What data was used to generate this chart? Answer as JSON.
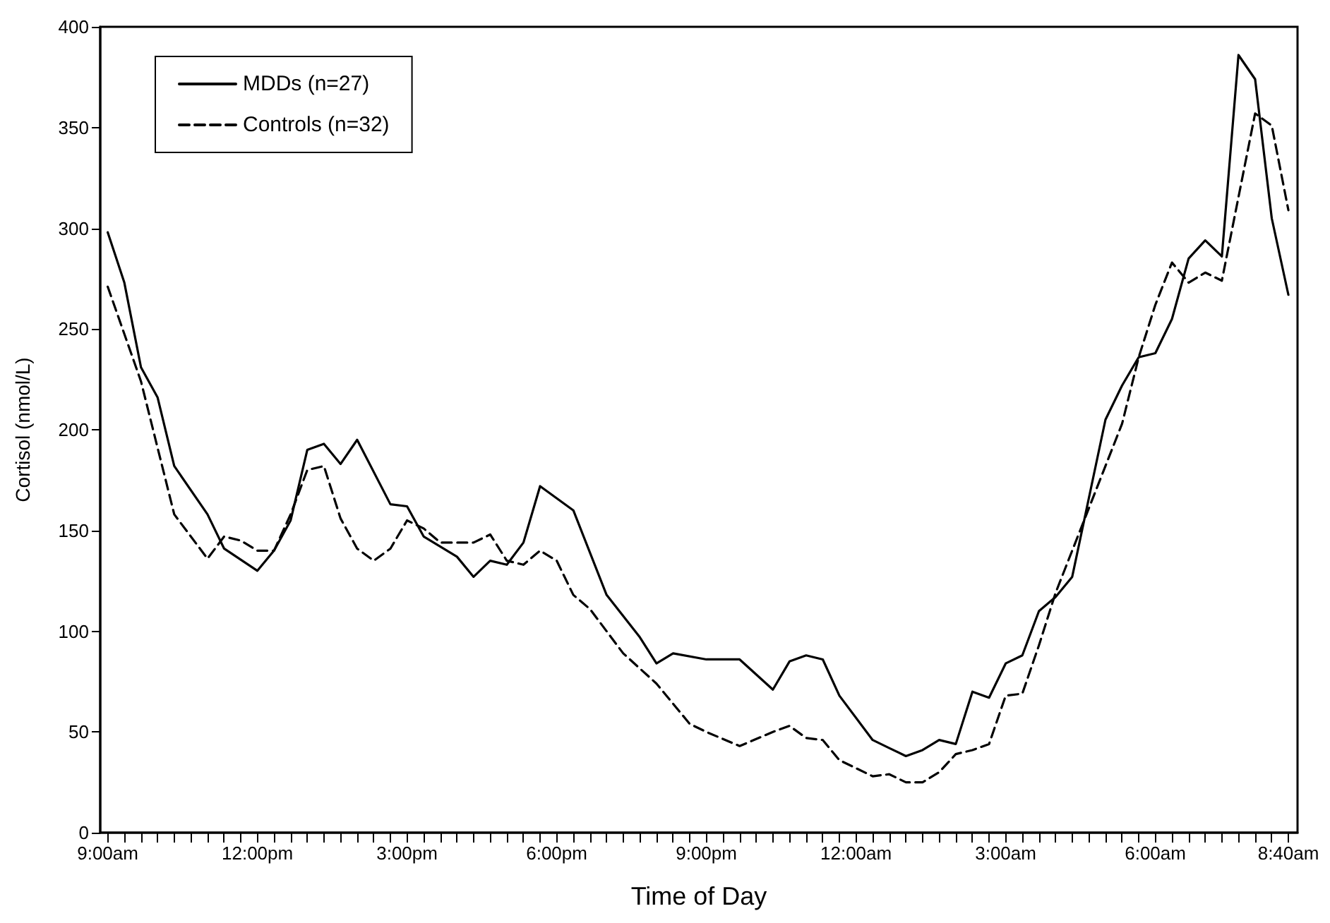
{
  "chart_data": {
    "type": "line",
    "xlabel": "Time of Day",
    "ylabel": "Cortisol (nmol/L)",
    "grid": false,
    "legend": "top left",
    "marker": "none",
    "xlim": [
      "--01-01T08:51",
      "--01-02T08:51"
    ],
    "ylim": [
      0,
      400
    ],
    "yticks": [
      0,
      50,
      100,
      150,
      200,
      250,
      300,
      350,
      400
    ],
    "xticks": [
      {
        "value": "--01-01T09:00",
        "label": "9:00am"
      },
      {
        "value": "--01-01T09:20",
        "label": null
      },
      {
        "value": "--01-01T09:40",
        "label": null
      },
      {
        "value": "--01-01T10:00",
        "label": null
      },
      {
        "value": "--01-01T10:20",
        "label": null
      },
      {
        "value": "--01-01T10:40",
        "label": null
      },
      {
        "value": "--01-01T11:00",
        "label": null
      },
      {
        "value": "--01-01T11:20",
        "label": null
      },
      {
        "value": "--01-01T11:40",
        "label": null
      },
      {
        "value": "--01-01T12:00",
        "label": "12:00pm"
      },
      {
        "value": "--01-01T12:20",
        "label": null
      },
      {
        "value": "--01-01T12:40",
        "label": null
      },
      {
        "value": "--01-01T13:00",
        "label": null
      },
      {
        "value": "--01-01T13:20",
        "label": null
      },
      {
        "value": "--01-01T13:40",
        "label": null
      },
      {
        "value": "--01-01T14:00",
        "label": null
      },
      {
        "value": "--01-01T14:20",
        "label": null
      },
      {
        "value": "--01-01T14:40",
        "label": null
      },
      {
        "value": "--01-01T15:00",
        "label": "3:00pm"
      },
      {
        "value": "--01-01T15:20",
        "label": null
      },
      {
        "value": "--01-01T15:40",
        "label": null
      },
      {
        "value": "--01-01T16:00",
        "label": null
      },
      {
        "value": "--01-01T16:20",
        "label": null
      },
      {
        "value": "--01-01T16:40",
        "label": null
      },
      {
        "value": "--01-01T17:00",
        "label": null
      },
      {
        "value": "--01-01T17:20",
        "label": null
      },
      {
        "value": "--01-01T17:40",
        "label": null
      },
      {
        "value": "--01-01T18:00",
        "label": "6:00pm"
      },
      {
        "value": "--01-01T18:20",
        "label": null
      },
      {
        "value": "--01-01T18:40",
        "label": null
      },
      {
        "value": "--01-01T19:00",
        "label": null
      },
      {
        "value": "--01-01T19:20",
        "label": null
      },
      {
        "value": "--01-01T19:40",
        "label": null
      },
      {
        "value": "--01-01T20:00",
        "label": null
      },
      {
        "value": "--01-01T20:20",
        "label": null
      },
      {
        "value": "--01-01T20:40",
        "label": null
      },
      {
        "value": "--01-01T21:00",
        "label": "9:00pm"
      },
      {
        "value": "--01-01T21:20",
        "label": null
      },
      {
        "value": "--01-01T21:40",
        "label": null
      },
      {
        "value": "--01-01T22:00",
        "label": null
      },
      {
        "value": "--01-01T22:20",
        "label": null
      },
      {
        "value": "--01-01T22:40",
        "label": null
      },
      {
        "value": "--01-01T23:00",
        "label": null
      },
      {
        "value": "--01-01T23:20",
        "label": null
      },
      {
        "value": "--01-01T23:40",
        "label": null
      },
      {
        "value": "--01-02T00:00",
        "label": "12:00am"
      },
      {
        "value": "--01-02T00:20",
        "label": null
      },
      {
        "value": "--01-02T00:40",
        "label": null
      },
      {
        "value": "--01-02T01:00",
        "label": null
      },
      {
        "value": "--01-02T01:20",
        "label": null
      },
      {
        "value": "--01-02T01:40",
        "label": null
      },
      {
        "value": "--01-02T02:00",
        "label": null
      },
      {
        "value": "--01-02T02:20",
        "label": null
      },
      {
        "value": "--01-02T02:40",
        "label": null
      },
      {
        "value": "--01-02T03:00",
        "label": "3:00am"
      },
      {
        "value": "--01-02T03:20",
        "label": null
      },
      {
        "value": "--01-02T03:40",
        "label": null
      },
      {
        "value": "--01-02T04:00",
        "label": null
      },
      {
        "value": "--01-02T04:20",
        "label": null
      },
      {
        "value": "--01-02T04:40",
        "label": null
      },
      {
        "value": "--01-02T05:00",
        "label": null
      },
      {
        "value": "--01-02T05:20",
        "label": null
      },
      {
        "value": "--01-02T05:40",
        "label": null
      },
      {
        "value": "--01-02T06:00",
        "label": "6:00am"
      },
      {
        "value": "--01-02T06:20",
        "label": null
      },
      {
        "value": "--01-02T06:40",
        "label": null
      },
      {
        "value": "--01-02T07:00",
        "label": null
      },
      {
        "value": "--01-02T07:20",
        "label": null
      },
      {
        "value": "--01-02T07:40",
        "label": null
      },
      {
        "value": "--01-02T08:00",
        "label": null
      },
      {
        "value": "--01-02T08:20",
        "label": null
      },
      {
        "value": "--01-02T08:40",
        "label": "8:40am"
      }
    ],
    "series": [
      {
        "name": "MDDs (n=27)",
        "color": "#000000",
        "line_style": "solid",
        "x": [
          "--01-01T09:00",
          "--01-01T09:20",
          "--01-01T09:40",
          "--01-01T10:00",
          "--01-01T10:20",
          "--01-01T11:00",
          "--01-01T11:20",
          "--01-01T12:00",
          "--01-01T12:20",
          "--01-01T12:40",
          "--01-01T13:00",
          "--01-01T13:20",
          "--01-01T13:40",
          "--01-01T14:00",
          "--01-01T14:40",
          "--01-01T15:00",
          "--01-01T15:20",
          "--01-01T16:00",
          "--01-01T16:20",
          "--01-01T16:40",
          "--01-01T17:00",
          "--01-01T17:20",
          "--01-01T17:40",
          "--01-01T18:20",
          "--01-01T19:00",
          "--01-01T19:40",
          "--01-01T20:00",
          "--01-01T20:20",
          "--01-01T21:00",
          "--01-01T21:40",
          "--01-01T22:20",
          "--01-01T22:40",
          "--01-01T23:00",
          "--01-01T23:20",
          "--01-01T23:40",
          "--01-02T00:20",
          "--01-02T00:40",
          "--01-02T01:00",
          "--01-02T01:20",
          "--01-02T01:40",
          "--01-02T02:00",
          "--01-02T02:20",
          "--01-02T02:40",
          "--01-02T03:00",
          "--01-02T03:20",
          "--01-02T03:40",
          "--01-02T04:00",
          "--01-02T04:20",
          "--01-02T05:00",
          "--01-02T05:20",
          "--01-02T05:40",
          "--01-02T06:00",
          "--01-02T06:20",
          "--01-02T06:40",
          "--01-02T07:00",
          "--01-02T07:20",
          "--01-02T07:40",
          "--01-02T08:00",
          "--01-02T08:20",
          "--01-02T08:40"
        ],
        "values": [
          298,
          273,
          231,
          216,
          182,
          158,
          141,
          130,
          140,
          155,
          190,
          193,
          183,
          195,
          163,
          162,
          147,
          137,
          127,
          135,
          133,
          144,
          172,
          160,
          118,
          97,
          84,
          89,
          86,
          86,
          71,
          85,
          88,
          86,
          68,
          46,
          42,
          38,
          41,
          46,
          44,
          70,
          67,
          84,
          88,
          110,
          117,
          127,
          205,
          222,
          236,
          238,
          255,
          285,
          294,
          286,
          386,
          374,
          305,
          267
        ]
      },
      {
        "name": "Controls (n=32)",
        "color": "#000000",
        "line_style": "dashed",
        "x": [
          "--01-01T09:00",
          "--01-01T09:40",
          "--01-01T10:20",
          "--01-01T11:00",
          "--01-01T11:20",
          "--01-01T11:40",
          "--01-01T12:00",
          "--01-01T12:20",
          "--01-01T12:40",
          "--01-01T13:00",
          "--01-01T13:20",
          "--01-01T13:40",
          "--01-01T14:00",
          "--01-01T14:20",
          "--01-01T14:40",
          "--01-01T15:00",
          "--01-01T15:20",
          "--01-01T15:40",
          "--01-01T16:20",
          "--01-01T16:40",
          "--01-01T17:00",
          "--01-01T17:20",
          "--01-01T17:40",
          "--01-01T18:00",
          "--01-01T18:20",
          "--01-01T18:40",
          "--01-01T19:20",
          "--01-01T20:00",
          "--01-01T20:40",
          "--01-01T21:00",
          "--01-01T21:40",
          "--01-01T22:20",
          "--01-01T22:40",
          "--01-01T23:00",
          "--01-01T23:20",
          "--01-01T23:40",
          "--01-02T00:20",
          "--01-02T00:40",
          "--01-02T01:00",
          "--01-02T01:20",
          "--01-02T01:40",
          "--01-02T02:00",
          "--01-02T02:20",
          "--01-02T02:40",
          "--01-02T03:00",
          "--01-02T03:20",
          "--01-02T03:40",
          "--01-02T04:00",
          "--01-02T04:40",
          "--01-02T05:20",
          "--01-02T05:40",
          "--01-02T06:00",
          "--01-02T06:20",
          "--01-02T06:40",
          "--01-02T07:00",
          "--01-02T07:20",
          "--01-02T08:00",
          "--01-02T08:20",
          "--01-02T08:40"
        ],
        "values": [
          271,
          224,
          158,
          136,
          147,
          145,
          140,
          140,
          158,
          180,
          182,
          156,
          141,
          135,
          141,
          155,
          151,
          144,
          144,
          148,
          135,
          133,
          140,
          135,
          118,
          111,
          89,
          74,
          54,
          50,
          43,
          50,
          53,
          47,
          46,
          36,
          28,
          29,
          25,
          25,
          30,
          39,
          41,
          44,
          68,
          69,
          93,
          119,
          161,
          203,
          236,
          262,
          283,
          273,
          278,
          274,
          357,
          351,
          309
        ]
      }
    ]
  }
}
